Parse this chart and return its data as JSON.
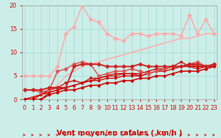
{
  "bg_color": "#cceee8",
  "grid_color": "#aaddda",
  "xlabel": "Vent moyen/en rafales ( km/h )",
  "xlabel_color": "#cc0000",
  "xlim": [
    0,
    23
  ],
  "ylim": [
    0,
    20
  ],
  "yticks": [
    0,
    5,
    10,
    15,
    20
  ],
  "xticks": [
    0,
    1,
    2,
    3,
    4,
    5,
    6,
    7,
    8,
    9,
    10,
    11,
    12,
    13,
    14,
    15,
    16,
    17,
    18,
    19,
    20,
    21,
    22,
    23
  ],
  "lines": [
    {
      "x": [
        0,
        1,
        2,
        3,
        4,
        5,
        6,
        7,
        8,
        9,
        10,
        11,
        12,
        13,
        14,
        15,
        16,
        17,
        18,
        19,
        20,
        21,
        22,
        23
      ],
      "y": [
        5,
        5,
        5,
        5,
        7,
        14,
        15.5,
        20,
        17,
        16.5,
        14,
        13,
        12.5,
        14,
        14,
        13.5,
        14,
        14,
        14,
        13.5,
        18,
        14,
        17,
        14
      ],
      "color": "#ffaaaa",
      "lw": 1.2,
      "marker": "D",
      "ms": 2.5,
      "zorder": 3
    },
    {
      "x": [
        0,
        1,
        2,
        3,
        4,
        5,
        6,
        7,
        8,
        9,
        10,
        11,
        12,
        13,
        14,
        15,
        16,
        17,
        18,
        19,
        20,
        21,
        22,
        23
      ],
      "y": [
        0,
        0.5,
        1,
        2,
        3,
        5,
        6,
        7,
        7.5,
        8,
        8.5,
        9,
        9.5,
        10,
        10.5,
        11,
        11.5,
        12,
        12.5,
        13,
        13,
        13.5,
        14,
        14
      ],
      "color": "#ffaaaa",
      "lw": 1.2,
      "marker": null,
      "ms": 0,
      "zorder": 2
    },
    {
      "x": [
        0,
        1,
        2,
        3,
        4,
        5,
        6,
        7,
        8,
        9,
        10,
        11,
        12,
        13,
        14,
        15,
        16,
        17,
        18,
        19,
        20,
        21,
        22,
        23
      ],
      "y": [
        2,
        2,
        1.5,
        2,
        6,
        6.5,
        7.5,
        8,
        7.5,
        5,
        5.5,
        6,
        6,
        6.5,
        6,
        5.5,
        6,
        6.5,
        7,
        7,
        7.5,
        8,
        7,
        7.5
      ],
      "color": "#dd5555",
      "lw": 1.2,
      "marker": "D",
      "ms": 2.5,
      "zorder": 6
    },
    {
      "x": [
        0,
        1,
        2,
        3,
        4,
        5,
        6,
        7,
        8,
        9,
        10,
        11,
        12,
        13,
        14,
        15,
        16,
        17,
        18,
        19,
        20,
        21,
        22,
        23
      ],
      "y": [
        2,
        2,
        2,
        2.5,
        2.5,
        2.5,
        7,
        7.5,
        7.5,
        7.5,
        7,
        7,
        7,
        7,
        7.5,
        7,
        7,
        7,
        7,
        7,
        7.5,
        7.5,
        7,
        7.5
      ],
      "color": "#cc2222",
      "lw": 1.5,
      "marker": "D",
      "ms": 2.5,
      "zorder": 6
    },
    {
      "x": [
        0,
        1,
        2,
        3,
        4,
        5,
        6,
        7,
        8,
        9,
        10,
        11,
        12,
        13,
        14,
        15,
        16,
        17,
        18,
        19,
        20,
        21,
        22,
        23
      ],
      "y": [
        0,
        0,
        1,
        2,
        2.5,
        3.5,
        4,
        3.5,
        4.5,
        4.5,
        5,
        5.5,
        5.5,
        5.5,
        5,
        5.5,
        6,
        6.5,
        7,
        8,
        7,
        6.5,
        7,
        7
      ],
      "color": "#cc0000",
      "lw": 1.0,
      "marker": "v",
      "ms": 2,
      "zorder": 4
    },
    {
      "x": [
        0,
        1,
        2,
        3,
        4,
        5,
        6,
        7,
        8,
        9,
        10,
        11,
        12,
        13,
        14,
        15,
        16,
        17,
        18,
        19,
        20,
        21,
        22,
        23
      ],
      "y": [
        0,
        0.5,
        1,
        1.5,
        2,
        2.5,
        3,
        3.5,
        4,
        4.5,
        5,
        5,
        5.5,
        5.5,
        5.5,
        6,
        6.5,
        6.5,
        7,
        7,
        7.5,
        7,
        7,
        7.5
      ],
      "color": "#cc0000",
      "lw": 1.0,
      "marker": "^",
      "ms": 2,
      "zorder": 4
    },
    {
      "x": [
        0,
        1,
        2,
        3,
        4,
        5,
        6,
        7,
        8,
        9,
        10,
        11,
        12,
        13,
        14,
        15,
        16,
        17,
        18,
        19,
        20,
        21,
        22,
        23
      ],
      "y": [
        0,
        0,
        0,
        1.5,
        2,
        2.5,
        3,
        3.5,
        4,
        4,
        4.5,
        4.5,
        5,
        5,
        5,
        5.5,
        6,
        6,
        6.5,
        7,
        7,
        7,
        7,
        7
      ],
      "color": "#cc0000",
      "lw": 1.0,
      "marker": "s",
      "ms": 2,
      "zorder": 5
    },
    {
      "x": [
        0,
        1,
        2,
        3,
        4,
        5,
        6,
        7,
        8,
        9,
        10,
        11,
        12,
        13,
        14,
        15,
        16,
        17,
        18,
        19,
        20,
        21,
        22,
        23
      ],
      "y": [
        0,
        0,
        0,
        1,
        1.5,
        2,
        2,
        2.5,
        3,
        3,
        3.5,
        3.5,
        4,
        4,
        4.5,
        4.5,
        5,
        5,
        5.5,
        6,
        6,
        6,
        6.5,
        7
      ],
      "color": "#cc0000",
      "lw": 1.2,
      "marker": "D",
      "ms": 2,
      "zorder": 5
    }
  ],
  "arrow_color": "#cc0000",
  "tick_color": "#cc0000",
  "tick_fontsize": 6,
  "xlabel_fontsize": 7.5
}
